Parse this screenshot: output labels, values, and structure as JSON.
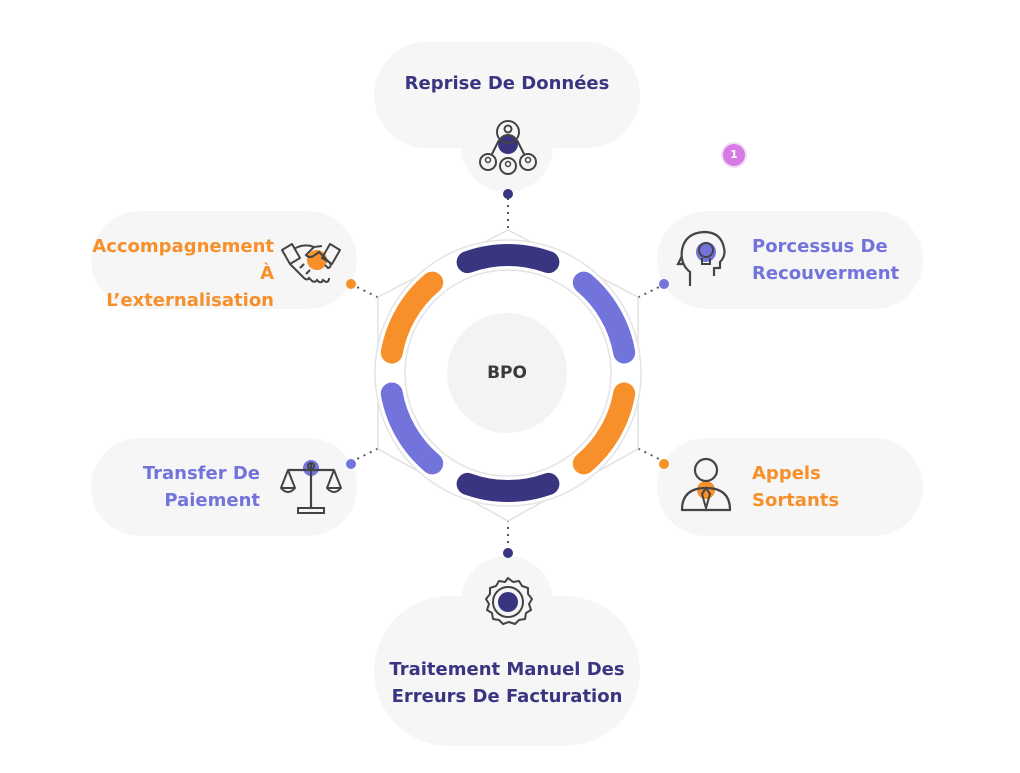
{
  "center": {
    "label": "BPO"
  },
  "nodes": {
    "top": {
      "lines": [
        "Reprise De Données"
      ],
      "color": "#3a3580",
      "icon": "people-network-icon"
    },
    "top_right": {
      "lines": [
        "Porcessus De",
        "Recouverment"
      ],
      "color": "#7274dc",
      "icon": "head-idea-icon"
    },
    "bottom_right": {
      "lines": [
        "Appels",
        "Sortants"
      ],
      "color": "#f7902a",
      "icon": "person-tie-icon"
    },
    "bottom": {
      "lines": [
        "Traitement Manuel Des",
        "Erreurs De Facturation"
      ],
      "color": "#3a3580",
      "icon": "badge-seal-icon"
    },
    "bottom_left": {
      "lines": [
        "Transfer De",
        "Paiement"
      ],
      "color": "#7274dc",
      "icon": "scales-icon"
    },
    "top_left": {
      "lines": [
        "Accompagnement",
        "À L’externalisation"
      ],
      "color": "#f7902a",
      "icon": "handshake-icon"
    }
  },
  "notification": {
    "count": "1"
  },
  "colors": {
    "navy": "#3a3580",
    "orange": "#f7902a",
    "lavender": "#7274dc",
    "bubble": "#f6f6f6"
  }
}
